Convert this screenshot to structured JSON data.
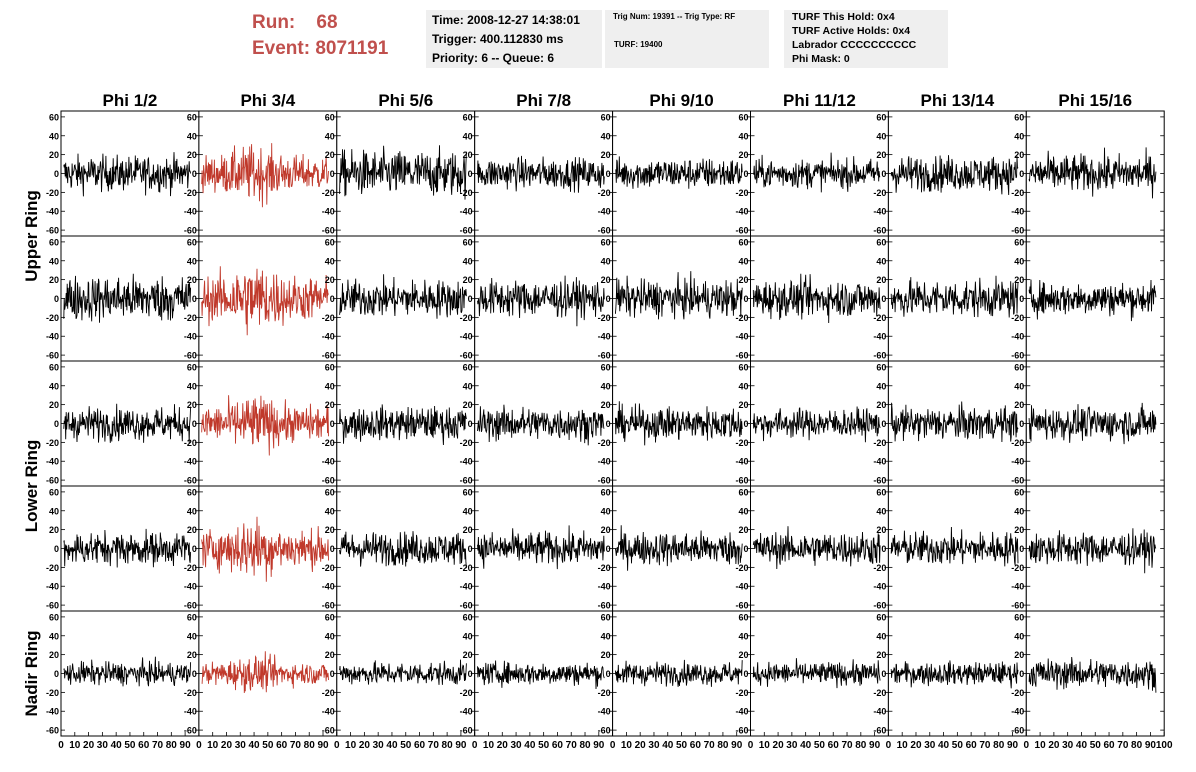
{
  "header": {
    "run_label": "Run:",
    "run_value": "68",
    "event_label": "Event:",
    "event_value": "8071191",
    "time_line": "Time: 2008-12-27 14:38:01",
    "trigger_line": "Trigger: 400.112830 ms",
    "priority_line": "Priority: 6 -- Queue: 6",
    "trig_num_line": "Trig Num: 19391 -- Trig Type: RF",
    "turf_line": "TURF: 19400",
    "turf_this_hold": "TURF This Hold: 0x4",
    "turf_active_holds": "TURF Active Holds: 0x4",
    "labrador": "Labrador CCCCCCCCCC",
    "phi_mask": "Phi Mask: 0"
  },
  "chart_data": {
    "type": "line",
    "column_labels": [
      "Phi 1/2",
      "Phi 3/4",
      "Phi 5/6",
      "Phi 7/8",
      "Phi 9/10",
      "Phi 11/12",
      "Phi 13/14",
      "Phi 15/16"
    ],
    "row_labels": [
      "Upper Ring",
      "",
      "Lower Ring",
      "",
      "Nadir Ring"
    ],
    "row_label_groups": [
      {
        "label": "Upper Ring",
        "rows": [
          0,
          1
        ]
      },
      {
        "label": "Lower Ring",
        "rows": [
          2,
          3
        ]
      },
      {
        "label": "Nadir Ring",
        "rows": [
          4
        ]
      }
    ],
    "y_ticks": [
      -60,
      -40,
      -20,
      0,
      20,
      40,
      60
    ],
    "ylim": [
      -62,
      62
    ],
    "x_ticks": [
      0,
      10,
      20,
      30,
      40,
      50,
      60,
      70,
      80,
      90,
      100
    ],
    "xlim": [
      0,
      100
    ],
    "triggered_column": 1,
    "colors": {
      "normal": "#000000",
      "triggered": "#c0392b"
    },
    "amplitude": [
      [
        17,
        22,
        22,
        15,
        15,
        14,
        17,
        18
      ],
      [
        22,
        28,
        18,
        18,
        18,
        18,
        18,
        16
      ],
      [
        16,
        22,
        16,
        16,
        16,
        14,
        16,
        16
      ],
      [
        16,
        24,
        16,
        16,
        16,
        16,
        16,
        16
      ],
      [
        11,
        14,
        11,
        11,
        11,
        11,
        11,
        14
      ]
    ],
    "n_samples": 260
  }
}
